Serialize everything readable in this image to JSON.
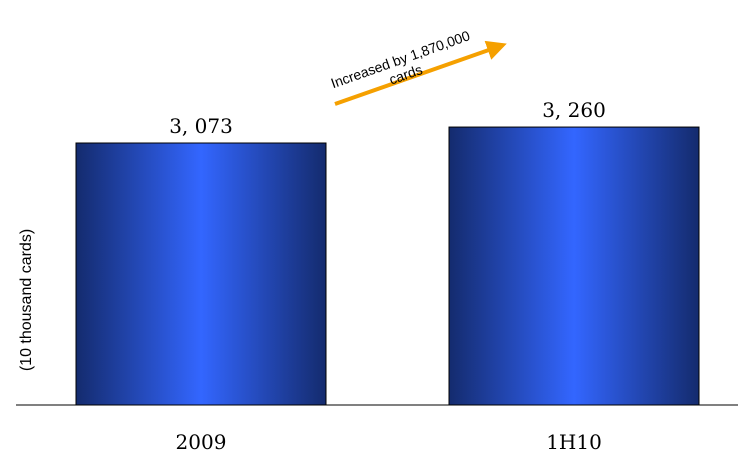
{
  "chart_data": {
    "type": "bar",
    "categories": [
      "2009",
      "1H10"
    ],
    "values": [
      3073,
      3260
    ],
    "value_labels": [
      "3, 073",
      "3, 260"
    ],
    "ylabel": "(10 thousand cards)",
    "annotation": {
      "line1": "Increased by 1,870,000",
      "line2": "cards"
    },
    "colors": {
      "bar_center": "#3366ff",
      "bar_edge": "#142b6e",
      "bar_border": "#000000",
      "arrow": "#f5a000",
      "axis": "#000000"
    },
    "grid": false,
    "legend": "none"
  }
}
